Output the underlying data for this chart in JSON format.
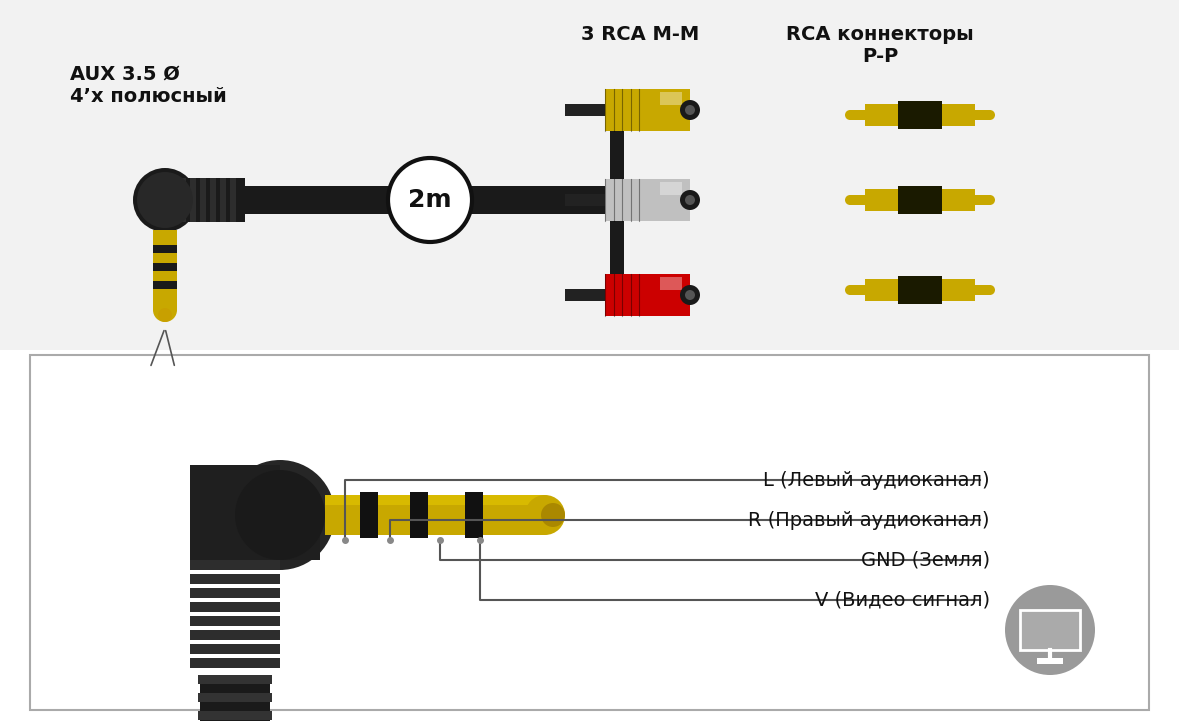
{
  "bg_color": "#ffffff",
  "upper_bg": "#f0f0f0",
  "lower_bg": "#ffffff",
  "label_aux": "AUX 3.5 Ø\n4’x полюсный",
  "label_3rca": "3 RCA M-M",
  "label_rca_conn": "RCA коннекторы\nР-Р",
  "label_2m": "2m",
  "label_L": "L (Левый аудиоканал)",
  "label_R": "R (Правый аудиоканал)",
  "label_GND": "GND (Земля)",
  "label_V": "V (Видео сигнал)",
  "gold_color": "#c8a800",
  "gold_light": "#e8cc00",
  "silver_color": "#c0c0c0",
  "red_color": "#cc0000",
  "black_color": "#1a1a1a",
  "dark_brown": "#2a1a00",
  "cable_color": "#222222",
  "connector_bg": "#303030",
  "text_color": "#111111",
  "font_size_label": 13,
  "font_size_2m": 16,
  "font_size_pin": 13
}
